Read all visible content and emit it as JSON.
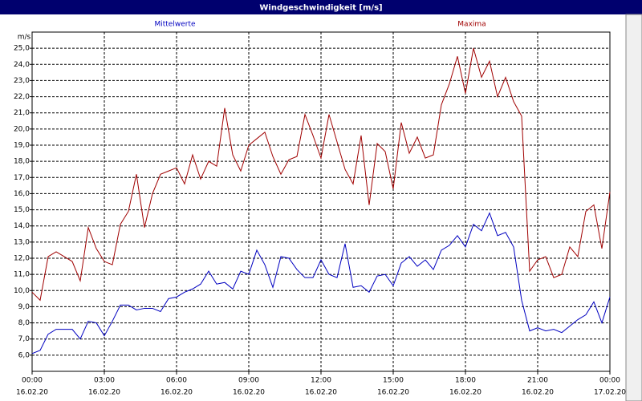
{
  "chart_data": {
    "type": "line",
    "title": "Windgeschwindigkeit [m/s]",
    "ylabel": "m/s",
    "x": [
      0,
      20,
      40,
      60,
      80,
      100,
      120,
      140,
      160,
      180,
      200,
      220,
      240,
      260,
      280,
      300,
      320,
      340,
      360,
      380,
      400,
      420,
      440,
      460,
      480,
      500,
      520,
      540,
      560,
      580,
      600,
      620,
      640,
      660,
      680,
      700,
      720,
      740,
      760,
      780,
      800,
      820,
      840,
      860,
      880,
      900,
      920,
      940,
      960,
      980,
      1000,
      1020,
      1040,
      1060,
      1080,
      1100,
      1120,
      1140,
      1160,
      1180,
      1200,
      1220,
      1240,
      1260,
      1280,
      1300,
      1320,
      1340,
      1360,
      1380,
      1400,
      1420,
      1440
    ],
    "series": [
      {
        "name": "Mittelwerte",
        "color": "#0000c0",
        "values": [
          6.1,
          6.3,
          7.3,
          7.6,
          7.6,
          7.6,
          7.0,
          8.1,
          8.0,
          7.2,
          8.1,
          9.1,
          9.1,
          8.8,
          8.9,
          8.9,
          8.7,
          9.5,
          9.6,
          9.9,
          10.1,
          10.4,
          11.2,
          10.4,
          10.5,
          10.1,
          11.2,
          11.0,
          12.5,
          11.6,
          10.2,
          12.1,
          12.0,
          11.3,
          10.8,
          10.8,
          11.9,
          11.0,
          10.8,
          12.9,
          10.2,
          10.3,
          9.9,
          10.9,
          11.0,
          10.3,
          11.7,
          12.1,
          11.5,
          11.9,
          11.3,
          12.5,
          12.8,
          13.4,
          12.7,
          14.1,
          13.7,
          14.8,
          13.4,
          13.6,
          12.7,
          9.4,
          7.5,
          7.7,
          7.5,
          7.6,
          7.4,
          7.8,
          8.2,
          8.5,
          9.3,
          8.0,
          9.6
        ]
      },
      {
        "name": "Maxima",
        "color": "#a00000",
        "values": [
          9.9,
          9.4,
          12.1,
          12.4,
          12.1,
          11.8,
          10.6,
          13.9,
          12.6,
          11.8,
          11.6,
          14.1,
          14.9,
          17.2,
          13.9,
          16.0,
          17.2,
          17.4,
          17.6,
          16.6,
          18.4,
          16.9,
          18.0,
          17.7,
          21.3,
          18.4,
          17.4,
          19.0,
          19.4,
          19.8,
          18.3,
          17.2,
          18.1,
          18.3,
          20.9,
          19.6,
          18.2,
          20.9,
          19.2,
          17.5,
          16.6,
          19.6,
          15.3,
          19.1,
          18.6,
          16.3,
          20.4,
          18.5,
          19.5,
          18.2,
          18.4,
          21.5,
          22.8,
          24.5,
          22.2,
          25.0,
          23.2,
          24.2,
          22.0,
          23.2,
          21.7,
          20.8,
          11.2,
          11.9,
          12.1,
          10.8,
          11.0,
          12.7,
          12.1,
          14.9,
          15.3,
          12.6,
          16.1
        ]
      }
    ],
    "xlim": [
      0,
      1440
    ],
    "xticks": [
      {
        "value": 0,
        "label": "00:00"
      },
      {
        "value": 180,
        "label": "03:00"
      },
      {
        "value": 360,
        "label": "06:00"
      },
      {
        "value": 540,
        "label": "09:00"
      },
      {
        "value": 720,
        "label": "12:00"
      },
      {
        "value": 900,
        "label": "15:00"
      },
      {
        "value": 1080,
        "label": "18:00"
      },
      {
        "value": 1260,
        "label": "21:00"
      },
      {
        "value": 1440,
        "label": "00:00"
      }
    ],
    "xtick_dates": [
      "16.02.20",
      "16.02.20",
      "16.02.20",
      "16.02.20",
      "16.02.20",
      "16.02.20",
      "16.02.20",
      "16.02.20",
      "17.02.20"
    ],
    "ylim": [
      5,
      26
    ],
    "yticks": [
      {
        "value": 6,
        "label": "6,0"
      },
      {
        "value": 7,
        "label": "7,0"
      },
      {
        "value": 8,
        "label": "8,0"
      },
      {
        "value": 9,
        "label": "9,0"
      },
      {
        "value": 10,
        "label": "10,0"
      },
      {
        "value": 11,
        "label": "11,0"
      },
      {
        "value": 12,
        "label": "12,0"
      },
      {
        "value": 13,
        "label": "13,0"
      },
      {
        "value": 14,
        "label": "14,0"
      },
      {
        "value": 15,
        "label": "15,0"
      },
      {
        "value": 16,
        "label": "16,0"
      },
      {
        "value": 17,
        "label": "17,0"
      },
      {
        "value": 18,
        "label": "18,0"
      },
      {
        "value": 19,
        "label": "19,0"
      },
      {
        "value": 20,
        "label": "20,0"
      },
      {
        "value": 21,
        "label": "21,0"
      },
      {
        "value": 22,
        "label": "22,0"
      },
      {
        "value": 23,
        "label": "23,0"
      },
      {
        "value": 24,
        "label": "24,0"
      },
      {
        "value": 25,
        "label": "25,0"
      }
    ],
    "grid": true
  }
}
